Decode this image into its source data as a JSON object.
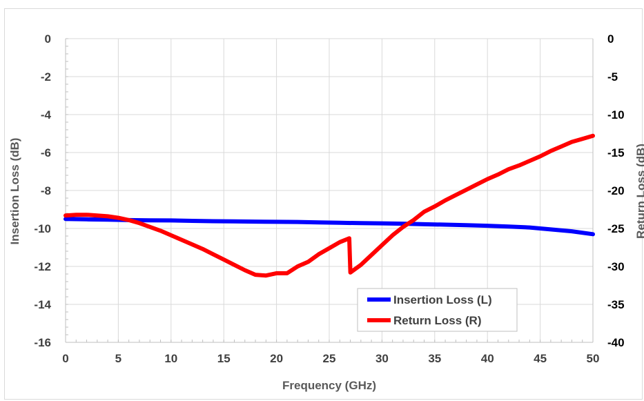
{
  "chart_data": {
    "type": "line",
    "title": "",
    "xlabel": "Frequency (GHz)",
    "ylabel_left": "Insertion Loss (dB)",
    "ylabel_right": "Return Loss (dB)",
    "xlim": [
      0,
      50
    ],
    "ylim_left": [
      -16,
      0
    ],
    "ylim_right": [
      -40,
      0
    ],
    "x_ticks": [
      "0",
      "5",
      "10",
      "15",
      "20",
      "25",
      "30",
      "35",
      "40",
      "45",
      "50"
    ],
    "y_left_ticks": [
      "0",
      "-2",
      "-4",
      "-6",
      "-8",
      "-10",
      "-12",
      "-14",
      "-16"
    ],
    "y_right_ticks": [
      "0",
      "-5",
      "-10",
      "-15",
      "-20",
      "-25",
      "-30",
      "-35",
      "-40"
    ],
    "grid": true,
    "legend_position": "bottom-right",
    "series": [
      {
        "name": "Insertion Loss (L)",
        "axis": "left",
        "color": "#0000ff",
        "x": [
          0,
          2,
          4,
          6,
          8,
          10,
          12,
          14,
          16,
          18,
          20,
          22,
          24,
          26,
          28,
          30,
          32,
          34,
          36,
          38,
          40,
          42,
          44,
          46,
          48,
          50
        ],
        "values": [
          -9.5,
          -9.52,
          -9.54,
          -9.56,
          -9.57,
          -9.58,
          -9.6,
          -9.62,
          -9.63,
          -9.64,
          -9.65,
          -9.66,
          -9.68,
          -9.7,
          -9.72,
          -9.73,
          -9.75,
          -9.78,
          -9.8,
          -9.83,
          -9.86,
          -9.9,
          -9.95,
          -10.05,
          -10.15,
          -10.3
        ]
      },
      {
        "name": "Return Loss (R)",
        "axis": "right",
        "color": "#ff0000",
        "x": [
          0,
          1,
          2,
          3,
          4,
          5,
          6,
          7,
          8,
          9,
          10,
          11,
          12,
          13,
          14,
          15,
          16,
          17,
          18,
          19,
          20,
          21,
          22,
          23,
          24,
          25,
          26,
          26.9,
          27,
          28,
          29,
          30,
          31,
          32,
          33,
          34,
          35,
          36,
          37,
          38,
          39,
          40,
          41,
          42,
          43,
          44,
          45,
          46,
          47,
          48,
          49,
          50
        ],
        "values": [
          -23.3,
          -23.2,
          -23.2,
          -23.3,
          -23.4,
          -23.6,
          -23.9,
          -24.3,
          -24.8,
          -25.3,
          -25.9,
          -26.5,
          -27.1,
          -27.7,
          -28.4,
          -29.1,
          -29.8,
          -30.5,
          -31.1,
          -31.2,
          -30.9,
          -30.9,
          -30.0,
          -29.4,
          -28.4,
          -27.6,
          -26.8,
          -26.3,
          -30.8,
          -29.8,
          -28.5,
          -27.2,
          -25.9,
          -24.8,
          -23.9,
          -22.8,
          -22.1,
          -21.3,
          -20.6,
          -19.9,
          -19.2,
          -18.5,
          -17.9,
          -17.2,
          -16.7,
          -16.1,
          -15.5,
          -14.8,
          -14.2,
          -13.6,
          -13.2,
          -12.8
        ]
      }
    ]
  }
}
